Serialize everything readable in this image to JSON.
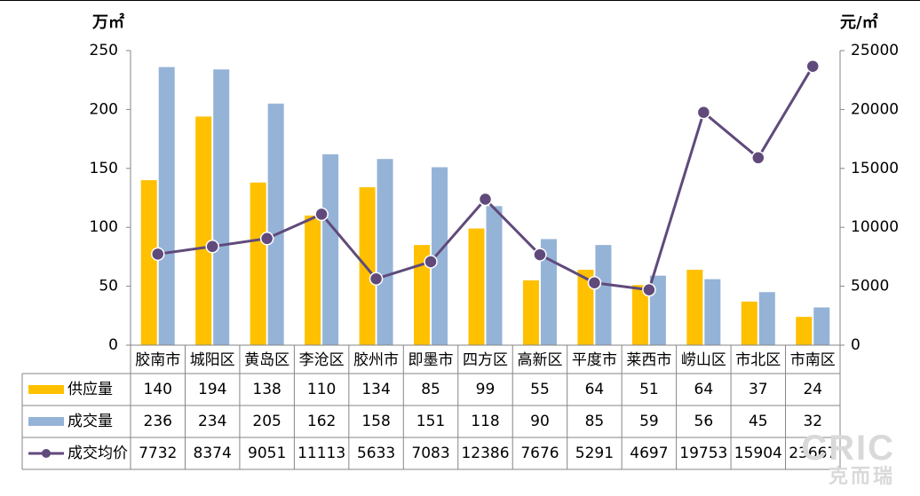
{
  "chart_data": {
    "type": "bar",
    "categories": [
      "胶南市",
      "城阳区",
      "黄岛区",
      "李沧区",
      "胶州市",
      "即墨市",
      "四方区",
      "高新区",
      "平度市",
      "莱西市",
      "崂山区",
      "市北区",
      "市南区"
    ],
    "left_unit": "万㎡",
    "right_unit": "元/㎡",
    "y_left": {
      "range": [
        0,
        250
      ],
      "ticks": [
        0,
        50,
        100,
        150,
        200,
        250
      ]
    },
    "y_right": {
      "range": [
        0,
        25000
      ],
      "ticks": [
        0,
        5000,
        10000,
        15000,
        20000,
        25000
      ]
    },
    "series": [
      {
        "name": "供应量",
        "kind": "bar",
        "axis": "left",
        "color": "#FFC000",
        "values": [
          140,
          194,
          138,
          110,
          134,
          85,
          99,
          55,
          64,
          51,
          64,
          37,
          24
        ]
      },
      {
        "name": "成交量",
        "kind": "bar",
        "axis": "left",
        "color": "#95B3D7",
        "values": [
          236,
          234,
          205,
          162,
          158,
          151,
          118,
          90,
          85,
          59,
          56,
          45,
          32
        ]
      },
      {
        "name": "成交均价",
        "kind": "line",
        "axis": "right",
        "color": "#604A7B",
        "values": [
          7732,
          8374,
          9051,
          11113,
          5633,
          7083,
          12386,
          7676,
          5291,
          4697,
          19753,
          15904,
          23667
        ]
      }
    ],
    "grid": false,
    "legend": "data-table"
  },
  "watermark": {
    "top": "CRIC",
    "bottom": "克而瑞"
  }
}
